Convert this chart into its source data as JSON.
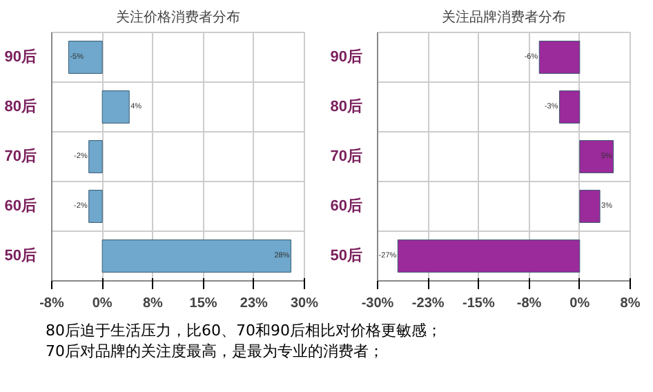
{
  "chart_data": [
    {
      "type": "bar",
      "orientation": "horizontal",
      "title": "关注价格消费者分布",
      "categories": [
        "90后",
        "80后",
        "70后",
        "60后",
        "50后"
      ],
      "values": [
        -5,
        4,
        -2,
        -2,
        28
      ],
      "color": "#6fa8cc",
      "value_labels": [
        "-5%",
        "4%",
        "-2%",
        "-2%",
        "28%"
      ],
      "xlim": [
        -7.5,
        30
      ],
      "xticks": [
        {
          "value": -7.5,
          "label": "-8%"
        },
        {
          "value": 0,
          "label": "0%"
        },
        {
          "value": 7.5,
          "label": "8%"
        },
        {
          "value": 15,
          "label": "15%"
        },
        {
          "value": 22.5,
          "label": "23%"
        },
        {
          "value": 30,
          "label": "30%"
        }
      ],
      "grid": true,
      "annotations": [
        "80后迫于生活压力，比60、70和90后相比对价格更敏感；",
        "70后对品牌的关注度最高，是最为专业的消费者；"
      ]
    },
    {
      "type": "bar",
      "orientation": "horizontal",
      "title": "关注品牌消费者分布",
      "categories": [
        "90后",
        "80后",
        "70后",
        "60后",
        "50后"
      ],
      "values": [
        -6,
        -3,
        5,
        3,
        -27
      ],
      "color": "#9b2a9b",
      "value_labels": [
        "-6%",
        "-3%",
        "5%",
        "3%",
        "-27%"
      ],
      "xlim": [
        -30,
        7.5
      ],
      "xticks": [
        {
          "value": -30,
          "label": "-30%"
        },
        {
          "value": -22.5,
          "label": "-23%"
        },
        {
          "value": -15,
          "label": "-15%"
        },
        {
          "value": -7.5,
          "label": "-8%"
        },
        {
          "value": 0,
          "label": "0%"
        },
        {
          "value": 7.5,
          "label": "8%"
        }
      ],
      "grid": true
    }
  ]
}
